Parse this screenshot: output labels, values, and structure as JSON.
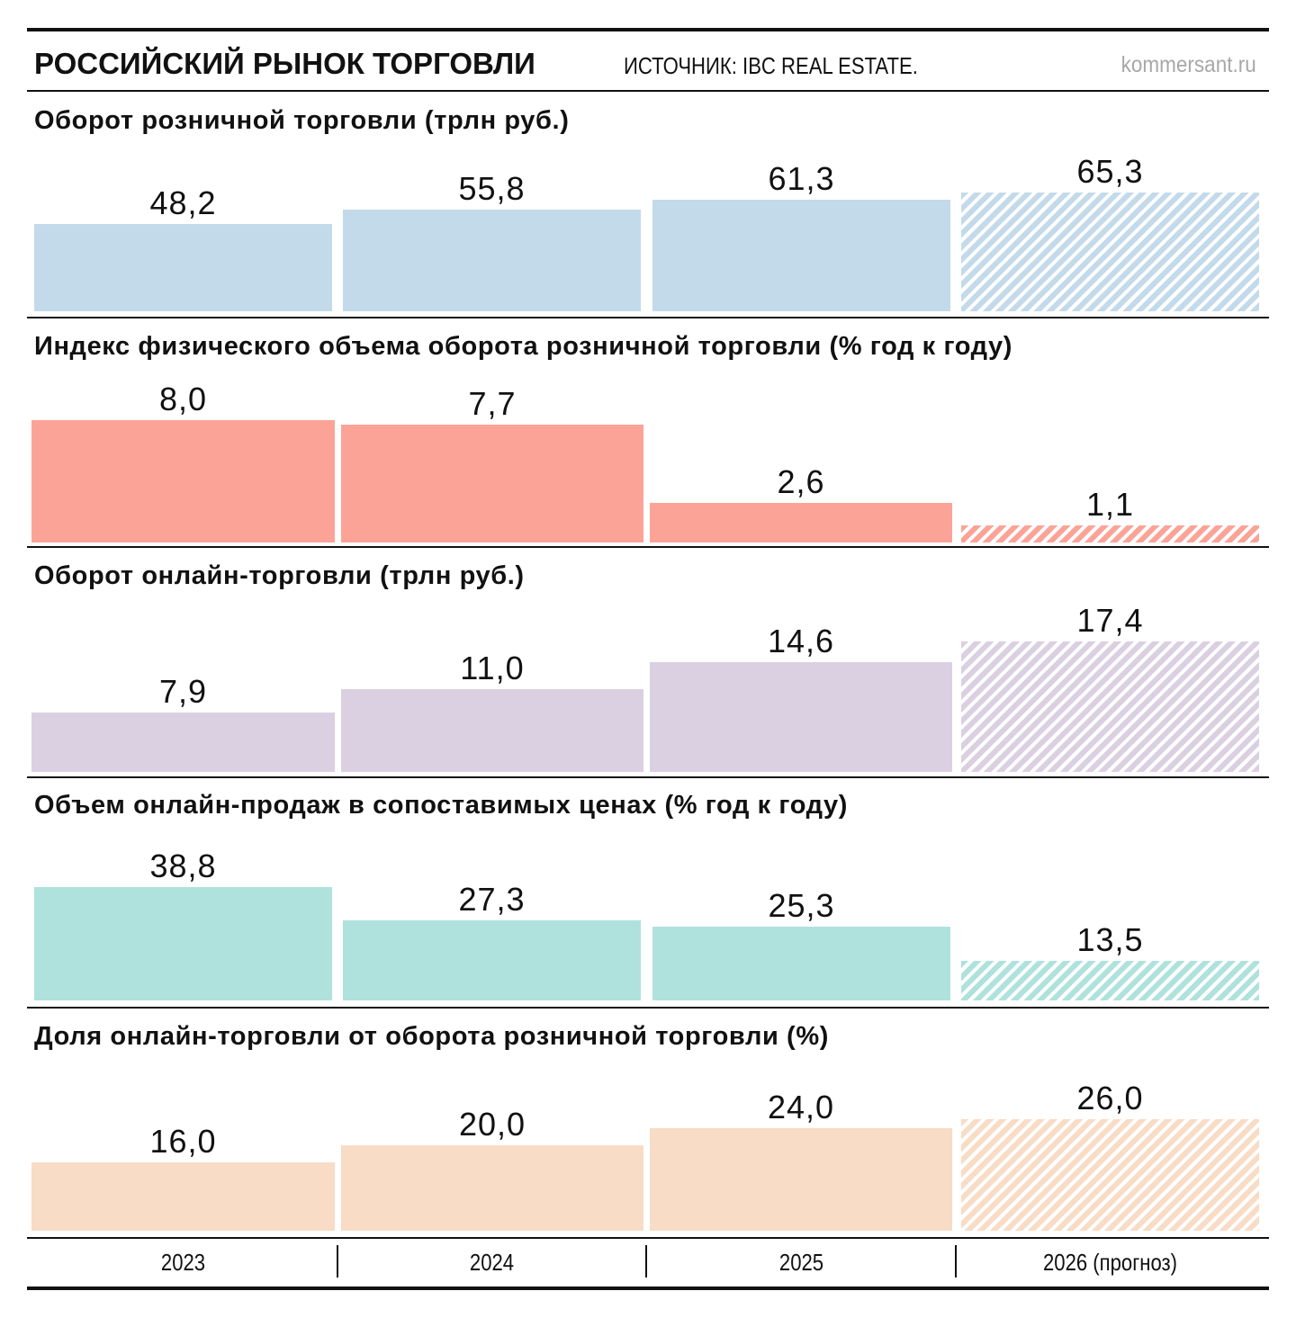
{
  "header": {
    "title": "РОССИЙСКИЙ РЫНОК ТОРГОВЛИ",
    "source": "ИСТОЧНИК: IBC REAL ESTATE.",
    "site": "kommersant.ru"
  },
  "chart_data": [
    {
      "type": "bar",
      "title": "Оборот розничной торговли (трлн руб.)",
      "categories": [
        "2023",
        "2024",
        "2025",
        "2026 (прогноз)"
      ],
      "values": [
        48.2,
        55.8,
        61.3,
        65.3
      ],
      "labels": [
        "48,2",
        "55,8",
        "61,3",
        "65,3"
      ],
      "forecast": [
        false,
        false,
        false,
        true
      ],
      "color": "#c3daea"
    },
    {
      "type": "bar",
      "title": "Индекс физического объема оборота розничной торговли (% год к году)",
      "categories": [
        "2023",
        "2024",
        "2025",
        "2026 (прогноз)"
      ],
      "values": [
        8.0,
        7.7,
        2.6,
        1.1
      ],
      "labels": [
        "8,0",
        "7,7",
        "2,6",
        "1,1"
      ],
      "forecast": [
        false,
        false,
        false,
        true
      ],
      "color": "#fca397"
    },
    {
      "type": "bar",
      "title": "Оборот онлайн-торговли (трлн руб.)",
      "categories": [
        "2023",
        "2024",
        "2025",
        "2026 (прогноз)"
      ],
      "values": [
        7.9,
        11.0,
        14.6,
        17.4
      ],
      "labels": [
        "7,9",
        "11,0",
        "14,6",
        "17,4"
      ],
      "forecast": [
        false,
        false,
        false,
        true
      ],
      "color": "#dbd0e1"
    },
    {
      "type": "bar",
      "title": "Объем онлайн-продаж в сопоставимых ценах (% год к году)",
      "categories": [
        "2023",
        "2024",
        "2025",
        "2026 (прогноз)"
      ],
      "values": [
        38.8,
        27.3,
        25.3,
        13.5
      ],
      "labels": [
        "38,8",
        "27,3",
        "25,3",
        "13,5"
      ],
      "forecast": [
        false,
        false,
        false,
        true
      ],
      "color": "#afe2dd"
    },
    {
      "type": "bar",
      "title": "Доля онлайн-торговли от оборота розничной торговли (%)",
      "categories": [
        "2023",
        "2024",
        "2025",
        "2026 (прогноз)"
      ],
      "values": [
        16.0,
        20.0,
        24.0,
        26.0
      ],
      "labels": [
        "16,0",
        "20,0",
        "24,0",
        "26,0"
      ],
      "forecast": [
        false,
        false,
        false,
        true
      ],
      "color": "#f8dcc5"
    }
  ],
  "x_axis": [
    "2023",
    "2024",
    "2025",
    "2026 (прогноз)"
  ]
}
